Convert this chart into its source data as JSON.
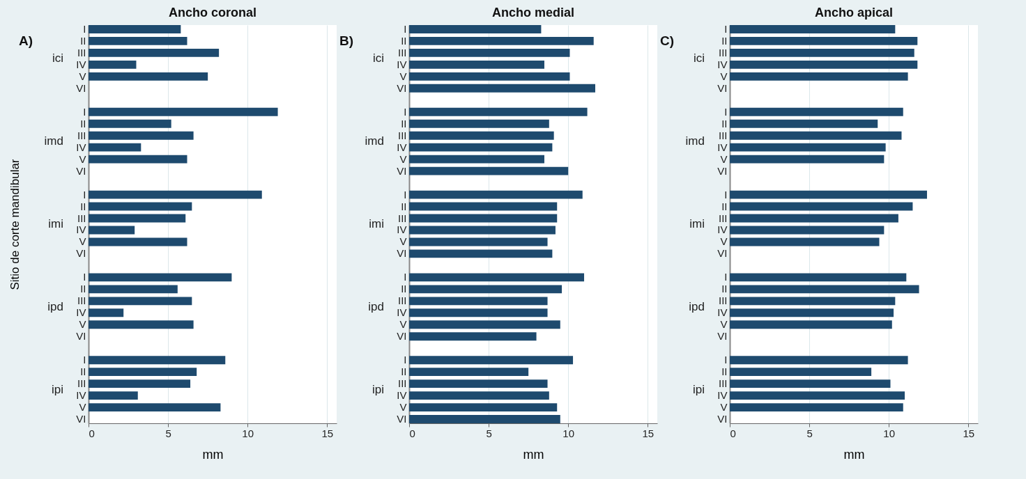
{
  "chart_data": [
    {
      "type": "bar",
      "orientation": "horizontal",
      "title": "Ancho coronal",
      "xlabel": "mm",
      "ylabel": "Sitio de corte mandibular",
      "color": "#1e4a6e",
      "grid": "x",
      "xlim": [
        0,
        15.6
      ],
      "xticks": [
        0,
        5,
        10,
        15
      ],
      "annotations": [
        "A)",
        "ici",
        "imd",
        "imi",
        "ipd",
        "ipi"
      ],
      "categories": [
        "I",
        "II",
        "III",
        "IV",
        "V",
        "VI",
        "I",
        "II",
        "III",
        "IV",
        "V",
        "VI",
        "I",
        "II",
        "III",
        "IV",
        "V",
        "VI",
        "I",
        "II",
        "III",
        "IV",
        "V",
        "VI",
        "I",
        "II",
        "III",
        "IV",
        "V",
        "VI"
      ],
      "values": [
        5.8,
        6.2,
        8.2,
        3.0,
        7.5,
        null,
        11.9,
        5.2,
        6.6,
        3.3,
        6.2,
        null,
        10.9,
        6.5,
        6.1,
        2.9,
        6.2,
        null,
        9.0,
        5.6,
        6.5,
        2.2,
        6.6,
        null,
        8.6,
        6.8,
        6.4,
        3.1,
        8.3,
        null
      ]
    },
    {
      "type": "bar",
      "orientation": "horizontal",
      "title": "Ancho medial",
      "xlabel": "mm",
      "color": "#1e4a6e",
      "grid": "x",
      "xlim": [
        0,
        15.6
      ],
      "xticks": [
        0,
        5,
        10,
        15
      ],
      "annotations": [
        "B)",
        "ici",
        "imd",
        "imi",
        "ipd",
        "ipi"
      ],
      "categories": [
        "I",
        "II",
        "III",
        "IV",
        "V",
        "VI",
        "I",
        "II",
        "III",
        "IV",
        "V",
        "VI",
        "I",
        "II",
        "III",
        "IV",
        "V",
        "VI",
        "I",
        "II",
        "III",
        "IV",
        "V",
        "VI",
        "I",
        "II",
        "III",
        "IV",
        "V",
        "VI"
      ],
      "values": [
        8.3,
        11.6,
        10.1,
        8.5,
        10.1,
        11.7,
        11.2,
        8.8,
        9.1,
        9.0,
        8.5,
        10.0,
        10.9,
        9.3,
        9.3,
        9.2,
        8.7,
        9.0,
        11.0,
        9.6,
        8.7,
        8.7,
        9.5,
        8.0,
        10.3,
        7.5,
        8.7,
        8.8,
        9.3,
        9.5
      ]
    },
    {
      "type": "bar",
      "orientation": "horizontal",
      "title": "Ancho apical",
      "xlabel": "mm",
      "color": "#1e4a6e",
      "grid": "x",
      "xlim": [
        0,
        15.6
      ],
      "xticks": [
        0,
        5,
        10,
        15
      ],
      "annotations": [
        "C)",
        "ici",
        "imd",
        "imi",
        "ipd",
        "ipi"
      ],
      "categories": [
        "I",
        "II",
        "III",
        "IV",
        "V",
        "VI",
        "I",
        "II",
        "III",
        "IV",
        "V",
        "VI",
        "I",
        "II",
        "III",
        "IV",
        "V",
        "VI",
        "I",
        "II",
        "III",
        "IV",
        "V",
        "VI",
        "I",
        "II",
        "III",
        "IV",
        "V",
        "VI"
      ],
      "values": [
        10.4,
        11.8,
        11.6,
        11.8,
        11.2,
        null,
        10.9,
        9.3,
        10.8,
        9.8,
        9.7,
        null,
        12.4,
        11.5,
        10.6,
        9.7,
        9.4,
        null,
        11.1,
        11.9,
        10.4,
        10.3,
        10.2,
        null,
        11.2,
        8.9,
        10.1,
        11.0,
        10.9,
        null
      ]
    }
  ]
}
